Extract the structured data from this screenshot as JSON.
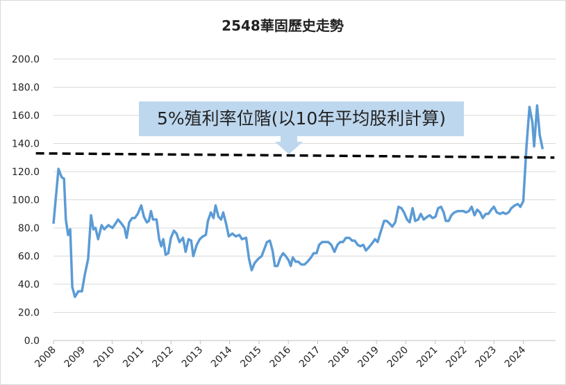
{
  "chart_data": {
    "type": "line",
    "title": "2548華固歷史走勢",
    "annotation": "5%殖利率位階(以10年平均股利計算)",
    "x": [
      2008.0,
      2008.17,
      2008.28,
      2008.36,
      2008.42,
      2008.5,
      2008.57,
      2008.64,
      2008.73,
      2008.85,
      2008.97,
      2009.07,
      2009.18,
      2009.28,
      2009.36,
      2009.43,
      2009.52,
      2009.64,
      2009.73,
      2009.87,
      2010.01,
      2010.11,
      2010.2,
      2010.32,
      2010.42,
      2010.49,
      2010.58,
      2010.68,
      2010.77,
      2010.87,
      2010.99,
      2011.08,
      2011.18,
      2011.25,
      2011.32,
      2011.39,
      2011.51,
      2011.6,
      2011.67,
      2011.74,
      2011.82,
      2011.91,
      2012.0,
      2012.1,
      2012.19,
      2012.29,
      2012.41,
      2012.5,
      2012.6,
      2012.69,
      2012.76,
      2012.88,
      2012.98,
      2013.09,
      2013.19,
      2013.26,
      2013.36,
      2013.45,
      2013.52,
      2013.62,
      2013.71,
      2013.78,
      2013.88,
      2013.97,
      2014.09,
      2014.21,
      2014.33,
      2014.42,
      2014.56,
      2014.66,
      2014.75,
      2014.85,
      2014.97,
      2015.09,
      2015.18,
      2015.27,
      2015.37,
      2015.46,
      2015.54,
      2015.63,
      2015.73,
      2015.82,
      2015.91,
      2016.01,
      2016.08,
      2016.15,
      2016.25,
      2016.34,
      2016.44,
      2016.55,
      2016.65,
      2016.77,
      2016.86,
      2016.96,
      2017.05,
      2017.15,
      2017.27,
      2017.36,
      2017.46,
      2017.57,
      2017.67,
      2017.76,
      2017.86,
      2017.96,
      2018.07,
      2018.17,
      2018.26,
      2018.36,
      2018.45,
      2018.55,
      2018.64,
      2018.73,
      2018.85,
      2018.95,
      2019.04,
      2019.14,
      2019.26,
      2019.35,
      2019.45,
      2019.54,
      2019.64,
      2019.75,
      2019.85,
      2019.94,
      2020.04,
      2020.13,
      2020.23,
      2020.32,
      2020.42,
      2020.51,
      2020.61,
      2020.73,
      2020.82,
      2020.91,
      2021.01,
      2021.1,
      2021.2,
      2021.29,
      2021.36,
      2021.46,
      2021.55,
      2021.65,
      2021.77,
      2021.86,
      2021.96,
      2022.05,
      2022.15,
      2022.24,
      2022.34,
      2022.43,
      2022.53,
      2022.62,
      2022.72,
      2022.81,
      2022.91,
      2023.0,
      2023.1,
      2023.21,
      2023.31,
      2023.4,
      2023.5,
      2023.59,
      2023.71,
      2023.81,
      2023.9,
      2024.0,
      2024.11,
      2024.21,
      2024.31,
      2024.37,
      2024.47,
      2024.56,
      2024.66
    ],
    "series": [
      {
        "color": "#5b9bd5",
        "values": [
          83,
          122,
          116,
          115,
          86,
          75,
          79,
          38,
          31,
          35,
          35,
          47,
          58,
          89,
          79,
          80,
          72,
          82,
          79,
          82,
          80,
          83,
          86,
          83,
          80,
          73,
          84,
          87,
          87,
          90,
          96,
          88,
          84,
          85,
          92,
          86,
          86,
          72,
          67,
          72,
          61,
          62,
          73,
          78,
          76,
          70,
          73,
          63,
          72,
          71,
          60,
          68,
          72,
          74,
          75,
          85,
          91,
          87,
          96,
          88,
          86,
          91,
          83,
          74,
          76,
          74,
          75,
          72,
          73,
          58,
          50,
          55,
          58,
          60,
          65,
          70,
          71,
          64,
          53,
          53,
          59,
          62,
          60,
          57,
          53,
          59,
          56,
          56,
          54,
          54,
          56,
          59,
          62,
          62,
          68,
          70,
          70,
          70,
          68,
          63,
          68,
          70,
          70,
          73,
          73,
          71,
          71,
          68,
          67,
          68,
          64,
          66,
          69,
          72,
          70,
          77,
          85,
          85,
          83,
          81,
          84,
          95,
          94,
          91,
          86,
          84,
          94,
          85,
          86,
          90,
          86,
          88,
          89,
          87,
          88,
          94,
          95,
          91,
          85,
          85,
          89,
          91,
          92,
          92,
          92,
          91,
          92,
          95,
          89,
          93,
          91,
          87,
          90,
          90,
          93,
          95,
          91,
          90,
          91,
          90,
          91,
          94,
          96,
          97,
          95,
          99,
          138,
          166,
          155,
          138,
          167,
          146,
          136
        ]
      }
    ],
    "reference_line": {
      "x": [
        2007.4,
        2025.06
      ],
      "y": [
        133,
        130
      ]
    },
    "xlim": [
      2008,
      2025.1
    ],
    "xticks": [
      2008,
      2009,
      2010,
      2011,
      2012,
      2013,
      2014,
      2015,
      2016,
      2017,
      2018,
      2019,
      2020,
      2021,
      2022,
      2023,
      2024
    ],
    "ylim": [
      0,
      200
    ],
    "yticks": [
      {
        "value": 0,
        "label": "0.0"
      },
      {
        "value": 20,
        "label": "20.0"
      },
      {
        "value": 40,
        "label": "40.0"
      },
      {
        "value": 60,
        "label": "60.0"
      },
      {
        "value": 80,
        "label": "80.0"
      },
      {
        "value": 100,
        "label": "100.0"
      },
      {
        "value": 120,
        "label": "120.0"
      },
      {
        "value": 140,
        "label": "140.0"
      },
      {
        "value": 160,
        "label": "160.0"
      },
      {
        "value": 180,
        "label": "180.0"
      },
      {
        "value": 200,
        "label": "200.0"
      }
    ],
    "grid": true
  }
}
